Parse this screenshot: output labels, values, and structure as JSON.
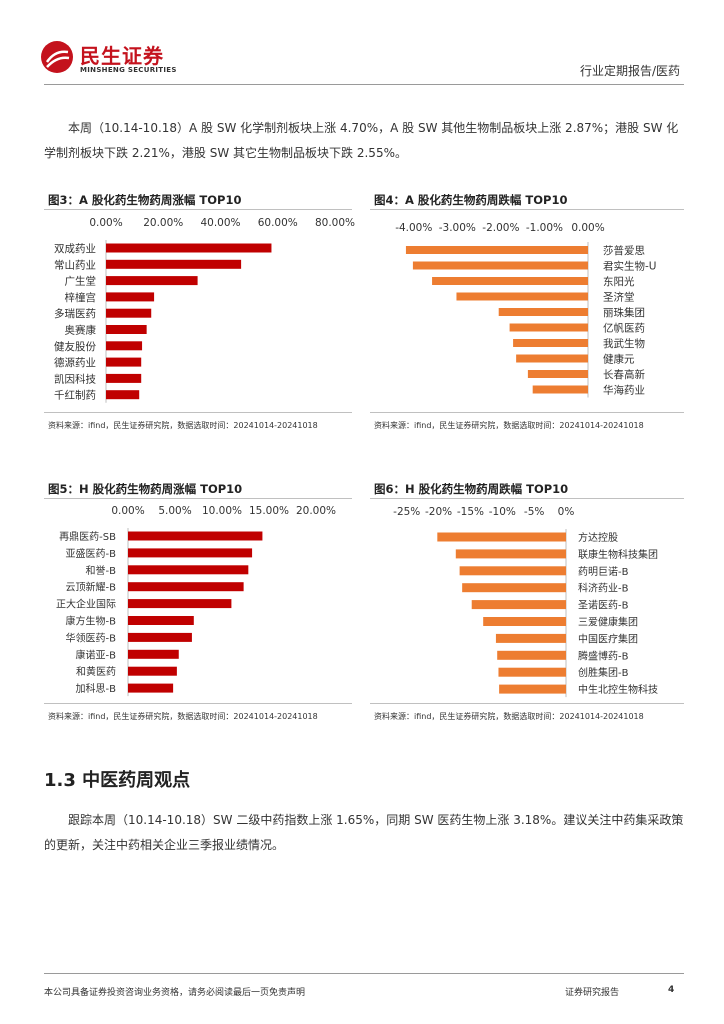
{
  "header": {
    "logo_cn": "民生证券",
    "logo_en": "MINSHENG SECURITIES",
    "report_type": "行业定期报告/医药"
  },
  "intro_paragraph": "本周（10.14-10.18）A 股 SW 化学制剂板块上涨 4.70%，A 股 SW 其他生物制品板块上涨 2.87%；港股 SW 化学制剂板块下跌 2.21%，港股 SW 其它生物制品板块下跌 2.55%。",
  "figures": [
    {
      "title": "图3：A 股化药生物药周涨幅 TOP10",
      "source": "资料来源：ifind，民生证券研究院，数据选取时间：20241014-20241018"
    },
    {
      "title": "图4：A 股化药生物药周跌幅 TOP10",
      "source": "资料来源：ifind，民生证券研究院，数据选取时间：20241014-20241018"
    },
    {
      "title": "图5：H 股化药生物药周涨幅 TOP10",
      "source": "资料来源：ifind，民生证券研究院，数据选取时间：20241014-20241018"
    },
    {
      "title": "图6：H 股化药生物药周跌幅 TOP10",
      "source": "资料来源：ifind，民生证券研究院，数据选取时间：20241014-20241018"
    }
  ],
  "section": {
    "heading": "1.3 中医药周观点",
    "paragraph": "跟踪本周（10.14-10.18）SW 二级中药指数上涨 1.65%，同期 SW 医药生物上涨 3.18%。建议关注中药集采政策的更新，关注中药相关企业三季报业绩情况。"
  },
  "footer": {
    "disclaimer": "本公司具备证券投资咨询业务资格，请务必阅读最后一页免责声明",
    "right_text": "证券研究报告",
    "page_number": "4"
  },
  "colors": {
    "brand": "#c4121d",
    "up_bar": "#c00000",
    "down_bar": "#ed7d31"
  },
  "chart_data": [
    {
      "type": "bar",
      "orientation": "horizontal",
      "categories": [
        "双成药业",
        "常山药业",
        "广生堂",
        "梓橦宫",
        "多瑞医药",
        "奥赛康",
        "健友股份",
        "德源药业",
        "凯因科技",
        "千红制药"
      ],
      "values": [
        57.8,
        47.2,
        32.0,
        16.8,
        15.8,
        14.2,
        12.6,
        12.3,
        12.3,
        11.6
      ],
      "xlim": [
        0,
        80
      ],
      "ticks": [
        "0.00%",
        "20.00%",
        "40.00%",
        "60.00%",
        "80.00%"
      ],
      "color": "#c00000"
    },
    {
      "type": "bar",
      "orientation": "horizontal",
      "categories": [
        "莎普爱思",
        "君实生物-U",
        "东阳光",
        "圣济堂",
        "丽珠集团",
        "亿帆医药",
        "我武生物",
        "健康元",
        "长春高新",
        "华海药业"
      ],
      "values": [
        -4.18,
        -4.02,
        -3.58,
        -3.02,
        -2.05,
        -1.8,
        -1.72,
        -1.65,
        -1.38,
        -1.27
      ],
      "xlim": [
        -4.5,
        0
      ],
      "ticks": [
        "-4.00%",
        "-3.00%",
        "-2.00%",
        "-1.00%",
        "0.00%"
      ],
      "color": "#ed7d31"
    },
    {
      "type": "bar",
      "orientation": "horizontal",
      "categories": [
        "再鼎医药-SB",
        "亚盛医药-B",
        "和誉-B",
        "云顶新耀-B",
        "正大企业国际",
        "康方生物-B",
        "华领医药-B",
        "康诺亚-B",
        "和黄医药",
        "加科思-B"
      ],
      "values": [
        14.3,
        13.2,
        12.8,
        12.3,
        11.0,
        7.0,
        6.8,
        5.4,
        5.2,
        4.8
      ],
      "xlim": [
        0,
        20
      ],
      "ticks": [
        "0.00%",
        "5.00%",
        "10.00%",
        "15.00%",
        "20.00%"
      ],
      "color": "#c00000"
    },
    {
      "type": "bar",
      "orientation": "horizontal",
      "categories": [
        "方达控股",
        "联康生物科技集团",
        "药明巨诺-B",
        "科济药业-B",
        "圣诺医药-B",
        "三爱健康集团",
        "中国医疗集团",
        "腾盛博药-B",
        "创胜集团-B",
        "中生北控生物科技"
      ],
      "values": [
        -20.2,
        -17.3,
        -16.7,
        -16.3,
        -14.8,
        -13.0,
        -11.0,
        -10.8,
        -10.6,
        -10.5
      ],
      "xlim": [
        -27,
        0
      ],
      "ticks": [
        "-25%",
        "-20%",
        "-15%",
        "-10%",
        "-5%",
        "0%"
      ],
      "color": "#ed7d31"
    }
  ]
}
